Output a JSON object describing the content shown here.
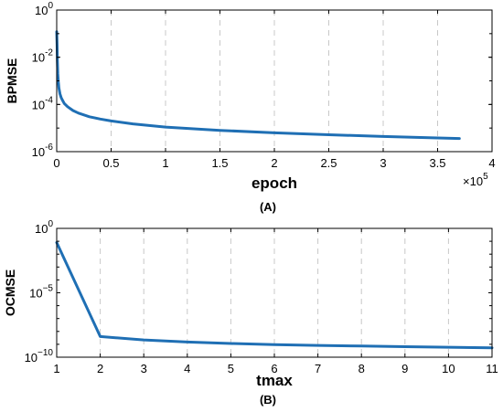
{
  "chart_data": [
    {
      "type": "line",
      "panel_label": "(A)",
      "xlabel": "epoch",
      "ylabel": "BPMSE",
      "x_exponent_label": "×10",
      "x_exponent_power": "5",
      "x_scale_factor": 100000,
      "xlim": [
        0,
        4
      ],
      "ylim": [
        1e-06,
        1
      ],
      "yscale": "log",
      "grid": "x-dashed",
      "xticks": [
        "0",
        "0.5",
        "1",
        "1.5",
        "2",
        "2.5",
        "3",
        "3.5",
        "4"
      ],
      "yticks": [
        {
          "base": "10",
          "exp": "0",
          "value": 1
        },
        {
          "base": "10",
          "exp": "-2",
          "value": 0.01
        },
        {
          "base": "10",
          "exp": "-4",
          "value": 0.0001
        },
        {
          "base": "10",
          "exp": "-6",
          "value": 1e-06
        }
      ],
      "color": "#1f6fb4",
      "series": [
        {
          "x": [
            0.0,
            0.003,
            0.006,
            0.01,
            0.015,
            0.02,
            0.03,
            0.04,
            0.05,
            0.07,
            0.1,
            0.15,
            0.2,
            0.3,
            0.4,
            0.5,
            0.7,
            1.0,
            1.5,
            2.0,
            2.5,
            3.0,
            3.5,
            3.7
          ],
          "y": [
            0.12,
            0.035,
            0.008,
            0.002,
            0.0009,
            0.0005,
            0.00028,
            0.0002,
            0.00016,
            0.00011,
            8e-05,
            5.5e-05,
            4.3e-05,
            3e-05,
            2.4e-05,
            2e-05,
            1.5e-05,
            1.1e-05,
            8e-06,
            6.3e-06,
            5.2e-06,
            4.4e-06,
            3.8e-06,
            3.6e-06
          ]
        }
      ]
    },
    {
      "type": "line",
      "panel_label": "(B)",
      "xlabel": "tmax",
      "ylabel": "OCMSE",
      "xlim": [
        1,
        11
      ],
      "ylim": [
        1e-10,
        1
      ],
      "yscale": "log",
      "grid": "x-dashed",
      "xticks": [
        "1",
        "2",
        "3",
        "4",
        "5",
        "6",
        "7",
        "8",
        "9",
        "10",
        "11"
      ],
      "yticks": [
        {
          "base": "10",
          "exp": "0",
          "value": 1
        },
        {
          "base": "10",
          "exp": "−5",
          "value": 1e-05
        },
        {
          "base": "10",
          "exp": "−10",
          "value": 1e-10
        }
      ],
      "color": "#1f6fb4",
      "series": [
        {
          "x": [
            1,
            2,
            3,
            4,
            5,
            6,
            7,
            8,
            9,
            10,
            11
          ],
          "y": [
            0.08,
            4e-09,
            2.2e-09,
            1.5e-09,
            1.15e-09,
            9.5e-10,
            8.2e-10,
            7.3e-10,
            6.5e-10,
            5.9e-10,
            5.4e-10
          ]
        }
      ]
    }
  ]
}
